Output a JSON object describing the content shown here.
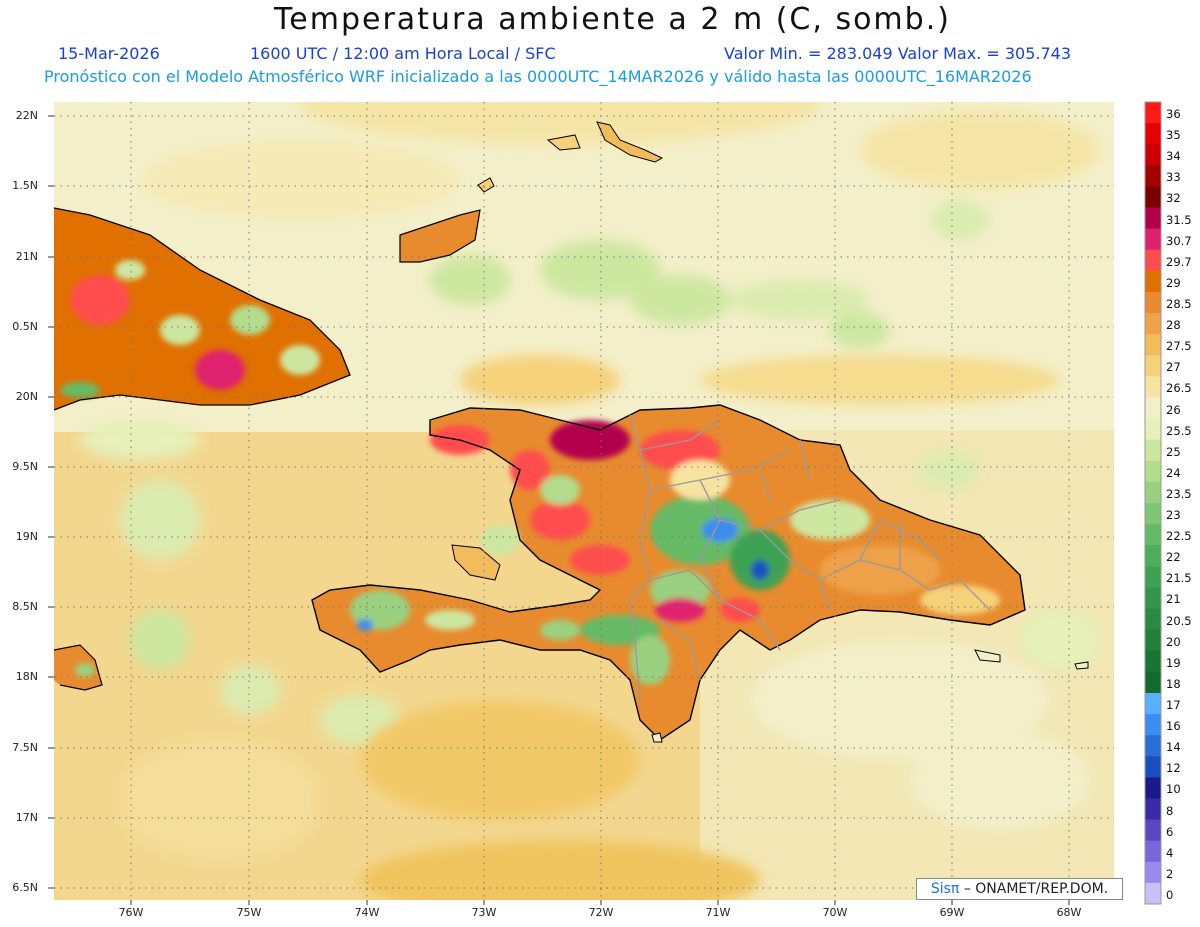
{
  "header": {
    "title": "Temperatura ambiente a 2 m (C, somb.)",
    "date": "15-Mar-2026",
    "time": "1600 UTC / 12:00 am Hora Local / SFC",
    "minmax": "Valor Min. = 283.049   Valor Max. = 305.743",
    "model": "Pronóstico con el Modelo Atmosférico WRF inicializado a las 0000UTC_14MAR2026 y válido hasta las  0000UTC_16MAR2026"
  },
  "latitude_labels": [
    "22N",
    "1.5N",
    "21N",
    "0.5N",
    "20N",
    "9.5N",
    "19N",
    "8.5N",
    "18N",
    "7.5N",
    "17N",
    "6.5N"
  ],
  "longitude_labels": [
    "76W",
    "75W",
    "74W",
    "73W",
    "72W",
    "71W",
    "70W",
    "69W",
    "68W"
  ],
  "colorbar": {
    "labels": [
      "36",
      "35",
      "34",
      "33",
      "32",
      "31.5",
      "30.7",
      "29.7",
      "29",
      "28.5",
      "28",
      "27.5",
      "27",
      "26.5",
      "26",
      "25.5",
      "25",
      "24",
      "23.5",
      "23",
      "22.5",
      "22",
      "21.5",
      "21",
      "20.5",
      "20",
      "19",
      "18",
      "17",
      "16",
      "14",
      "12",
      "10",
      "8",
      "6",
      "4",
      "2",
      "0"
    ],
    "colors": [
      "#ff1a1a",
      "#e60000",
      "#cc0000",
      "#a30000",
      "#7a0000",
      "#b3004d",
      "#e0206e",
      "#ff4d4d",
      "#e07000",
      "#e88b2e",
      "#eea14a",
      "#f2bb5c",
      "#f5d27a",
      "#f7e3a1",
      "#f3efc9",
      "#e6f0b8",
      "#cde7a0",
      "#b3dc8c",
      "#99d180",
      "#80c674",
      "#66ba66",
      "#4fae5c",
      "#3da253",
      "#33964a",
      "#2a8a42",
      "#22803c",
      "#1a7534",
      "#14692c",
      "#5ab0ff",
      "#3a8ef0",
      "#2a6ed8",
      "#1a4fc0",
      "#181a8a",
      "#3b2aa8",
      "#5a46c0",
      "#7a66d8",
      "#9a8aee",
      "#c8c0f8"
    ]
  },
  "credit": {
    "brand": "Sisπ",
    "text": "– ONAMET/REP.DOM."
  }
}
